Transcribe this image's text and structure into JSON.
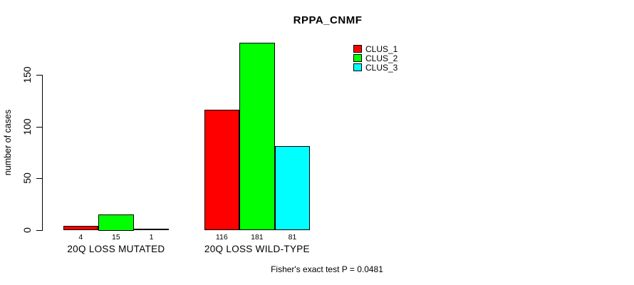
{
  "chart_data": {
    "type": "bar",
    "title": "RPPA_CNMF",
    "ylabel": "number of cases",
    "xlabel": "",
    "categories": [
      "20Q LOSS MUTATED",
      "20Q LOSS WILD-TYPE"
    ],
    "series": [
      {
        "name": "CLUS_1",
        "color": "#ff0000",
        "values": [
          4,
          116
        ]
      },
      {
        "name": "CLUS_2",
        "color": "#00ff00",
        "values": [
          15,
          181
        ]
      },
      {
        "name": "CLUS_3",
        "color": "#00ffff",
        "values": [
          1,
          81
        ]
      }
    ],
    "bar_value_labels": [
      [
        4,
        15,
        1
      ],
      [
        116,
        181,
        81
      ]
    ],
    "yticks": [
      0,
      50,
      100,
      150
    ],
    "ylim": [
      0,
      185
    ],
    "grid": false,
    "legend_position": "top-right",
    "annotation": "Fisher's exact test P = 0.0481",
    "background_color": "#ffffff",
    "text_color": "#000000"
  }
}
